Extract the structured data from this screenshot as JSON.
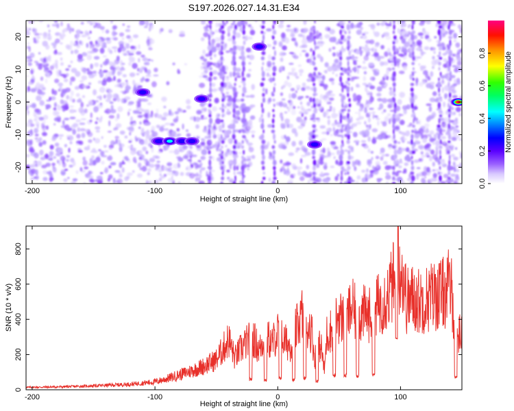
{
  "chart_data": [
    {
      "type": "heatmap",
      "title": "S197.2026.027.14.31.E34",
      "xlabel": "Height of straight line (km)",
      "ylabel": "Frequency (Hz)",
      "xlim": [
        -205,
        150
      ],
      "ylim": [
        -25,
        25
      ],
      "x_ticks": [
        -200,
        -100,
        0,
        100
      ],
      "y_ticks": [
        -20,
        -10,
        0,
        10,
        20
      ],
      "colorbar": {
        "label": "Normalized spectral amplitude",
        "range": [
          0,
          1
        ],
        "ticks": [
          0.0,
          0.2,
          0.4,
          0.6,
          0.8
        ],
        "colormap": [
          "#ffffff",
          "#b090ff",
          "#6a00ff",
          "#0000ff",
          "#00ffff",
          "#00ff00",
          "#ffff00",
          "#ff8000",
          "#ff0000",
          "#ff0080"
        ]
      },
      "features": [
        {
          "x": -110,
          "y": 3,
          "amp": 0.3
        },
        {
          "x": -97,
          "y": -12,
          "amp": 0.3
        },
        {
          "x": -88,
          "y": -12,
          "amp": 0.5
        },
        {
          "x": -78,
          "y": -12,
          "amp": 0.35
        },
        {
          "x": -70,
          "y": -12,
          "amp": 0.3
        },
        {
          "x": -62,
          "y": 1,
          "amp": 0.35
        },
        {
          "x": -15,
          "y": 17,
          "amp": 0.3
        },
        {
          "x": 30,
          "y": -13,
          "amp": 0.3
        },
        {
          "x": 147,
          "y": 0,
          "amp": 0.95
        }
      ]
    },
    {
      "type": "line",
      "xlabel": "Height of straight line (km)",
      "ylabel": "SNR (10 * v/v)",
      "xlim": [
        -205,
        150
      ],
      "ylim": [
        0,
        930
      ],
      "x_ticks": [
        -200,
        -100,
        0,
        100
      ],
      "y_ticks": [
        0,
        200,
        400,
        600,
        800
      ],
      "color": "#e8302a",
      "series": [
        {
          "x": [
            -205,
            -180,
            -160,
            -140,
            -120,
            -100,
            -90,
            -80,
            -70,
            -60,
            -50,
            -45,
            -40,
            -35,
            -30,
            -25,
            -20,
            -15,
            -10,
            -5,
            0,
            5,
            10,
            15,
            20,
            22,
            25,
            28,
            30,
            35,
            38,
            40,
            45,
            50,
            55,
            60,
            65,
            70,
            75,
            80,
            85,
            90,
            95,
            97,
            100,
            105,
            110,
            115,
            120,
            125,
            130,
            135,
            140,
            142,
            145,
            150
          ],
          "y": [
            15,
            18,
            22,
            28,
            35,
            50,
            70,
            95,
            120,
            150,
            190,
            250,
            320,
            200,
            260,
            300,
            330,
            250,
            350,
            290,
            360,
            310,
            280,
            380,
            480,
            300,
            420,
            350,
            200,
            290,
            120,
            350,
            390,
            470,
            430,
            520,
            460,
            480,
            470,
            520,
            560,
            600,
            700,
            300,
            820,
            560,
            580,
            560,
            570,
            590,
            600,
            610,
            650,
            600,
            350,
            350
          ]
        }
      ],
      "dips": [
        {
          "x": -22,
          "y": 50
        },
        {
          "x": -10,
          "y": 45
        },
        {
          "x": 2,
          "y": 55
        },
        {
          "x": 13,
          "y": 45
        },
        {
          "x": 22,
          "y": 55
        },
        {
          "x": 32,
          "y": 40
        },
        {
          "x": 46,
          "y": 70
        },
        {
          "x": 55,
          "y": 70
        },
        {
          "x": 65,
          "y": 70
        },
        {
          "x": 78,
          "y": 75
        },
        {
          "x": 97,
          "y": 280
        },
        {
          "x": 145,
          "y": 60
        }
      ],
      "peak": {
        "x": 98,
        "y": 930
      }
    }
  ]
}
